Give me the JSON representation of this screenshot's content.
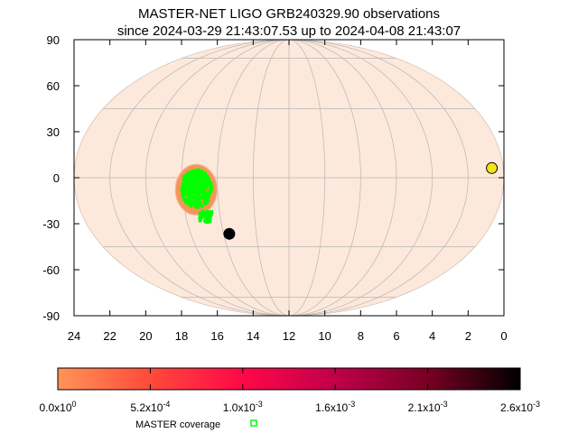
{
  "title": {
    "line1": "MASTER-NET LIGO GRB240329.90 observations",
    "line2": "since 2024-03-29 21:43:07.53 up to 2024-04-08 21:43:07"
  },
  "map": {
    "projection": "aitoff/mollweide (equal-area ellipse)",
    "x_axis": {
      "unit": "hours RA",
      "ticks": [
        "24",
        "22",
        "20",
        "18",
        "16",
        "14",
        "12",
        "10",
        "8",
        "6",
        "4",
        "2",
        "0"
      ],
      "range": [
        24,
        0
      ]
    },
    "y_axis": {
      "unit": "degrees Dec",
      "ticks": [
        "90",
        "60",
        "30",
        "0",
        "-30",
        "-60",
        "-90"
      ],
      "range": [
        -90,
        90
      ]
    },
    "background_fill": "#fde9dc",
    "grid_color": "#b5b5b5",
    "probability_region": {
      "center_ra_hours": 17.2,
      "center_dec_deg": -5,
      "color": "#f4965a"
    },
    "coverage_color": "#00ff00",
    "sun_marker": {
      "ra_hours": 0.65,
      "dec_deg": 4,
      "color": "#f2e218"
    },
    "moon_marker": {
      "ra_hours": 15.65,
      "dec_deg": -24,
      "color": "#000000"
    }
  },
  "colorbar": {
    "labels": [
      "0.0x10^0",
      "5.2x10^-4",
      "1.0x10^-3",
      "1.6x10^-3",
      "2.1x10^-3",
      "2.6x10^-3"
    ],
    "label_display": [
      {
        "base": "0.0x10",
        "exp": "0"
      },
      {
        "base": "5.2x10",
        "exp": "-4"
      },
      {
        "base": "1.0x10",
        "exp": "-3"
      },
      {
        "base": "1.6x10",
        "exp": "-3"
      },
      {
        "base": "2.1x10",
        "exp": "-3"
      },
      {
        "base": "2.6x10",
        "exp": "-3"
      }
    ],
    "gradient_stops": [
      "#ff9458",
      "#ff4a3a",
      "#ff0848",
      "#c0004a",
      "#780024",
      "#000000"
    ]
  },
  "legend": {
    "label": "MASTER coverage",
    "color": "#00ff00"
  }
}
